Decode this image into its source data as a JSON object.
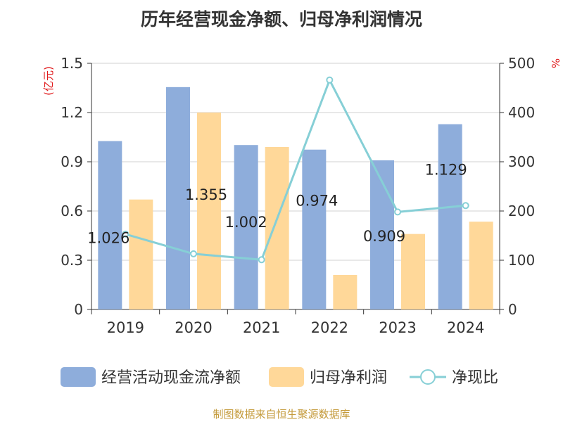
{
  "chart_data": {
    "type": "bar",
    "title": "历年经营现金净额、归母净利润情况",
    "categories": [
      "2019",
      "2020",
      "2021",
      "2022",
      "2023",
      "2024"
    ],
    "series": [
      {
        "name": "经营活动现金流净额",
        "axis": "left",
        "kind": "bar",
        "color": "#8eaddb",
        "values": [
          1.026,
          1.355,
          1.002,
          0.974,
          0.909,
          1.129
        ]
      },
      {
        "name": "归母净利润",
        "axis": "left",
        "kind": "bar",
        "color": "#ffd899",
        "values": [
          0.67,
          1.2,
          0.99,
          0.21,
          0.46,
          0.535
        ]
      },
      {
        "name": "净现比",
        "axis": "right",
        "kind": "line",
        "color": "#86cfd6",
        "values": [
          153,
          113,
          101,
          466,
          198,
          211
        ]
      }
    ],
    "data_labels": [
      "1.026",
      "1.355",
      "1.002",
      "0.974",
      "0.909",
      "1.129"
    ],
    "yleft": {
      "label": "(亿元)",
      "ticks": [
        "0",
        "0.3",
        "0.6",
        "0.9",
        "1.2",
        "1.5"
      ],
      "ylim": [
        0,
        1.5
      ]
    },
    "yright": {
      "label": "%",
      "ticks": [
        "0",
        "100",
        "200",
        "300",
        "400",
        "500"
      ],
      "ylim": [
        0,
        500
      ]
    },
    "legend": "bottom",
    "grid": true
  },
  "footer": "制图数据来自恒生聚源数据库"
}
